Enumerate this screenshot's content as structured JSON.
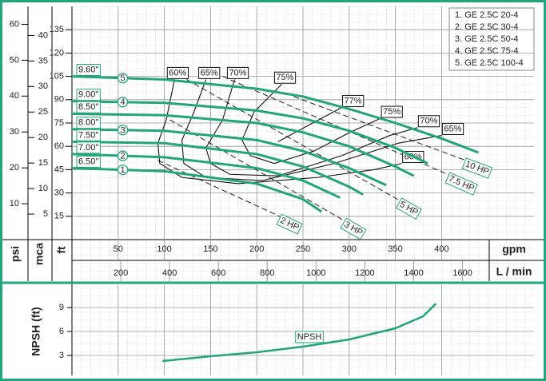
{
  "chart_data": [
    {
      "type": "line",
      "x_label": "gpm",
      "y_label": "ft",
      "xlim": [
        0,
        500
      ],
      "xticks": [
        50,
        100,
        150,
        200,
        250,
        300,
        350,
        400
      ],
      "ylim": [
        0,
        150
      ],
      "yticks": [
        15,
        30,
        45,
        60,
        75,
        90,
        105,
        120,
        135
      ],
      "psi_axis": {
        "label": "psi",
        "ylim": [
          0,
          65
        ],
        "yticks": [
          10,
          20,
          30,
          40,
          50,
          60
        ]
      },
      "mca_axis": {
        "label": "mca",
        "ylim": [
          0,
          45.7
        ],
        "yticks": [
          5,
          10,
          15,
          20,
          25,
          30,
          35,
          40
        ]
      },
      "x2_axis": {
        "label": "L / min",
        "xlim": [
          0,
          1893
        ],
        "xticks": [
          200,
          400,
          600,
          800,
          1000,
          1200,
          1400,
          1600
        ]
      },
      "legend": [
        "1. GE 2.5C 20-4",
        "2. GE 2.5C 30-4",
        "3. GE 2.5C 50-4",
        "4. GE 2.5C 75-4",
        "5. GE 2.5C 100-4"
      ],
      "series": [
        {
          "name": "9.60\"",
          "model": "5",
          "color": "#22a57c",
          "x": [
            0,
            100,
            200,
            250,
            300,
            350,
            400,
            440
          ],
          "values": [
            105,
            103,
            97,
            92,
            84,
            75,
            65,
            56
          ]
        },
        {
          "name": "9.00\"",
          "model": "4",
          "color": "#22a57c",
          "x": [
            0,
            100,
            200,
            250,
            300,
            350,
            385
          ],
          "values": [
            89,
            88,
            83,
            78,
            70,
            59,
            49
          ]
        },
        {
          "name": "8.50\"",
          "color": "#22a57c",
          "x": [
            0,
            100,
            200,
            250,
            300,
            350,
            370
          ],
          "values": [
            81,
            80,
            75,
            69,
            60,
            47,
            41
          ]
        },
        {
          "name": "8.00\"",
          "model": "3",
          "color": "#22a57c",
          "x": [
            0,
            100,
            200,
            250,
            300,
            340
          ],
          "values": [
            71,
            70,
            64,
            57,
            46,
            35
          ]
        },
        {
          "name": "7.50\"",
          "color": "#22a57c",
          "x": [
            0,
            100,
            200,
            250,
            300,
            315
          ],
          "values": [
            63,
            62,
            55,
            47,
            34,
            29
          ]
        },
        {
          "name": "7.00\"",
          "model": "2",
          "color": "#22a57c",
          "x": [
            0,
            100,
            200,
            250,
            290
          ],
          "values": [
            55,
            53,
            46,
            38,
            27
          ]
        },
        {
          "name": "6.50\"",
          "model": "1",
          "color": "#22a57c",
          "x": [
            0,
            100,
            200,
            250,
            270
          ],
          "values": [
            46,
            44,
            36,
            26,
            18
          ]
        }
      ],
      "efficiency_curves": [
        {
          "name": "60%",
          "x": [
            111,
            102,
            93,
            95,
            119,
            180,
            266,
            327,
            357
          ],
          "values": [
            103,
            77,
            62,
            49,
            40,
            36,
            40,
            45,
            49
          ]
        },
        {
          "name": "65%",
          "x": [
            145,
            132,
            119,
            121,
            145,
            206,
            284,
            353,
            400
          ],
          "values": [
            103,
            82,
            64,
            49,
            40,
            38,
            49,
            62,
            67
          ]
        },
        {
          "name": "70%",
          "x": [
            176,
            163,
            145,
            150,
            171,
            223,
            292,
            344,
            374
          ],
          "values": [
            103,
            77,
            59,
            49,
            42,
            41,
            54,
            67,
            72
          ]
        },
        {
          "name": "75%",
          "x": [
            227,
            197,
            184,
            193,
            219,
            262,
            301,
            334
          ],
          "values": [
            100,
            82,
            64,
            54,
            49,
            57,
            69,
            78
          ]
        },
        {
          "name": "77%",
          "x": [
            223,
            292
          ],
          "values": [
            63,
            85
          ]
        }
      ],
      "power_lines": [
        {
          "name": "2 HP",
          "x": [
            93,
            232
          ],
          "values": [
            51,
            13
          ]
        },
        {
          "name": "3 HP",
          "x": [
            106,
            301
          ],
          "values": [
            77,
            10
          ]
        },
        {
          "name": "5 HP",
          "x": [
            124,
            361
          ],
          "values": [
            103,
            23
          ]
        },
        {
          "name": "7.5 HP",
          "x": [
            163,
            418
          ],
          "values": [
            105,
            39
          ]
        },
        {
          "name": "10 HP",
          "x": [
            240,
            435
          ],
          "values": [
            92,
            49
          ]
        }
      ]
    },
    {
      "type": "line",
      "y_label": "NPSH (ft)",
      "xlim": [
        0,
        500
      ],
      "ylim": [
        0.5,
        11.5
      ],
      "yticks": [
        3,
        6,
        9
      ],
      "series": [
        {
          "name": "NPSH",
          "color": "#22a57c",
          "x": [
            98,
            150,
            200,
            250,
            300,
            350,
            380,
            394
          ],
          "values": [
            2.3,
            2.9,
            3.4,
            4.1,
            5.0,
            6.4,
            7.9,
            9.5
          ]
        }
      ]
    }
  ]
}
